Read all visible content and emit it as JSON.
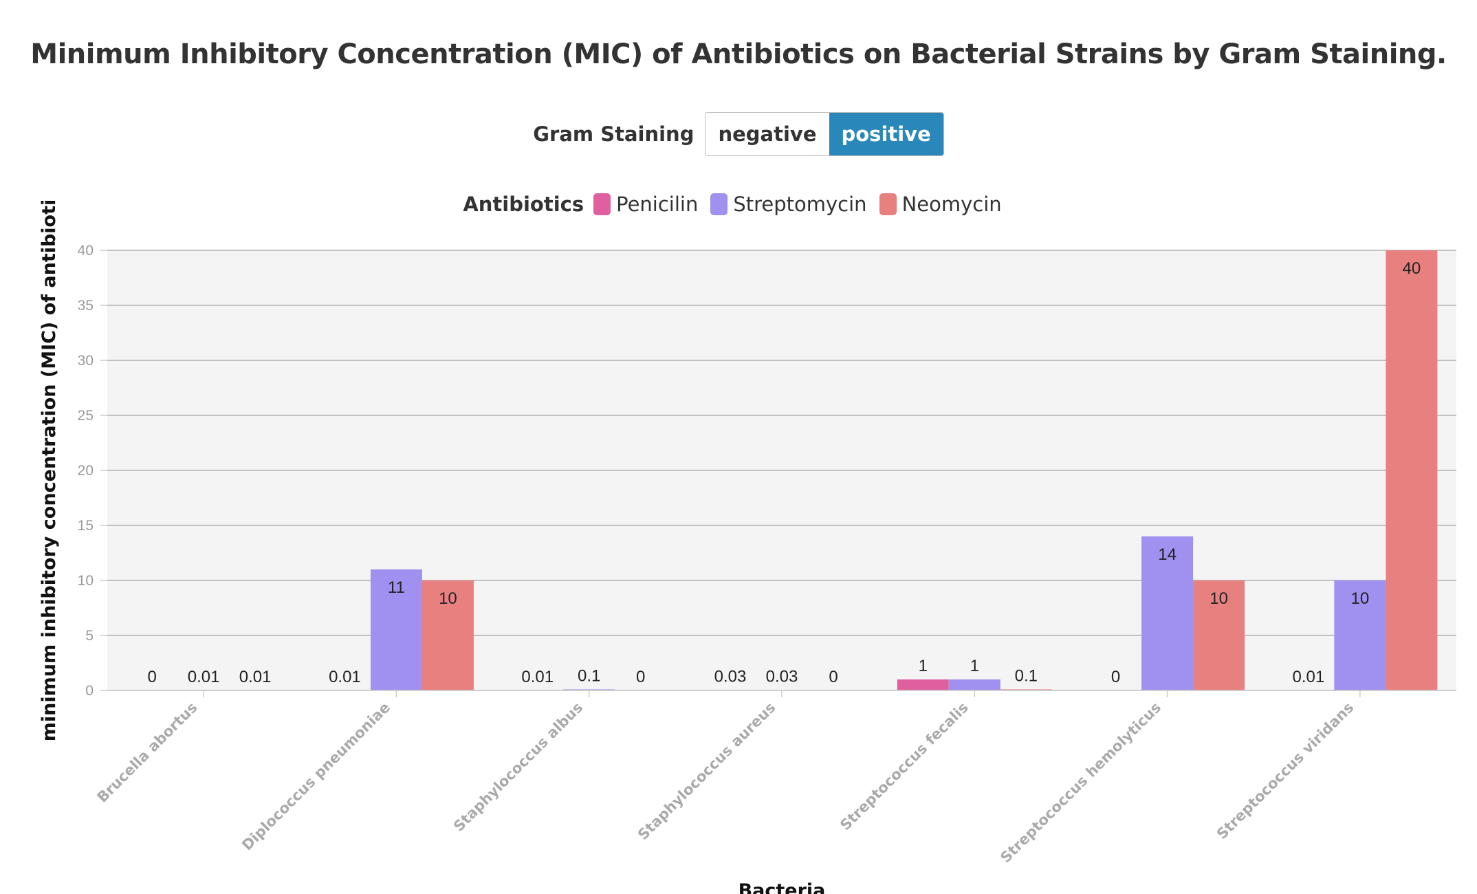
{
  "title": "Minimum Inhibitory Concentration (MIC) of Antibiotics on Bacterial Strains by Gram Staining.",
  "filter": {
    "label": "Gram Staining",
    "options": [
      "negative",
      "positive"
    ],
    "selected": "positive"
  },
  "legend": {
    "title": "Antibiotics"
  },
  "chart_data": {
    "type": "bar",
    "xlabel": "Bacteria",
    "ylabel": "minimum inhibitory concentration (MIC) of antibioti",
    "ylim": [
      0,
      40
    ],
    "yticks": [
      0,
      5,
      10,
      15,
      20,
      25,
      30,
      35,
      40
    ],
    "grid": true,
    "legend_position": "top",
    "categories": [
      "Brucella abortus",
      "Diplococcus pneumoniae",
      "Staphylococcus albus",
      "Staphylococcus aureus",
      "Streptococcus fecalis",
      "Streptococcus hemolyticus",
      "Streptococcus viridans"
    ],
    "series": [
      {
        "name": "Penicilin",
        "color": "#e0609f",
        "values": [
          0,
          0.01,
          0.01,
          0.03,
          1,
          0,
          0.01
        ],
        "labels": [
          "0",
          "0.01",
          "0.01",
          "0.03",
          "1",
          "0",
          "0.01"
        ]
      },
      {
        "name": "Streptomycin",
        "color": "#a090ef",
        "values": [
          0.01,
          11,
          0.1,
          0.03,
          1,
          14,
          10
        ],
        "labels": [
          "0.01",
          "11",
          "0.1",
          "0.03",
          "1",
          "14",
          "10"
        ]
      },
      {
        "name": "Neomycin",
        "color": "#e88080",
        "values": [
          0.01,
          10,
          0,
          0,
          0.1,
          10,
          40
        ],
        "labels": [
          "0.01",
          "10",
          "0",
          "0",
          "0.1",
          "10",
          "40"
        ]
      }
    ]
  },
  "colors": {
    "plot_background": "#f4f4f4",
    "gridline": "#b0b0b0",
    "toggle_active": "#2a87b9"
  }
}
